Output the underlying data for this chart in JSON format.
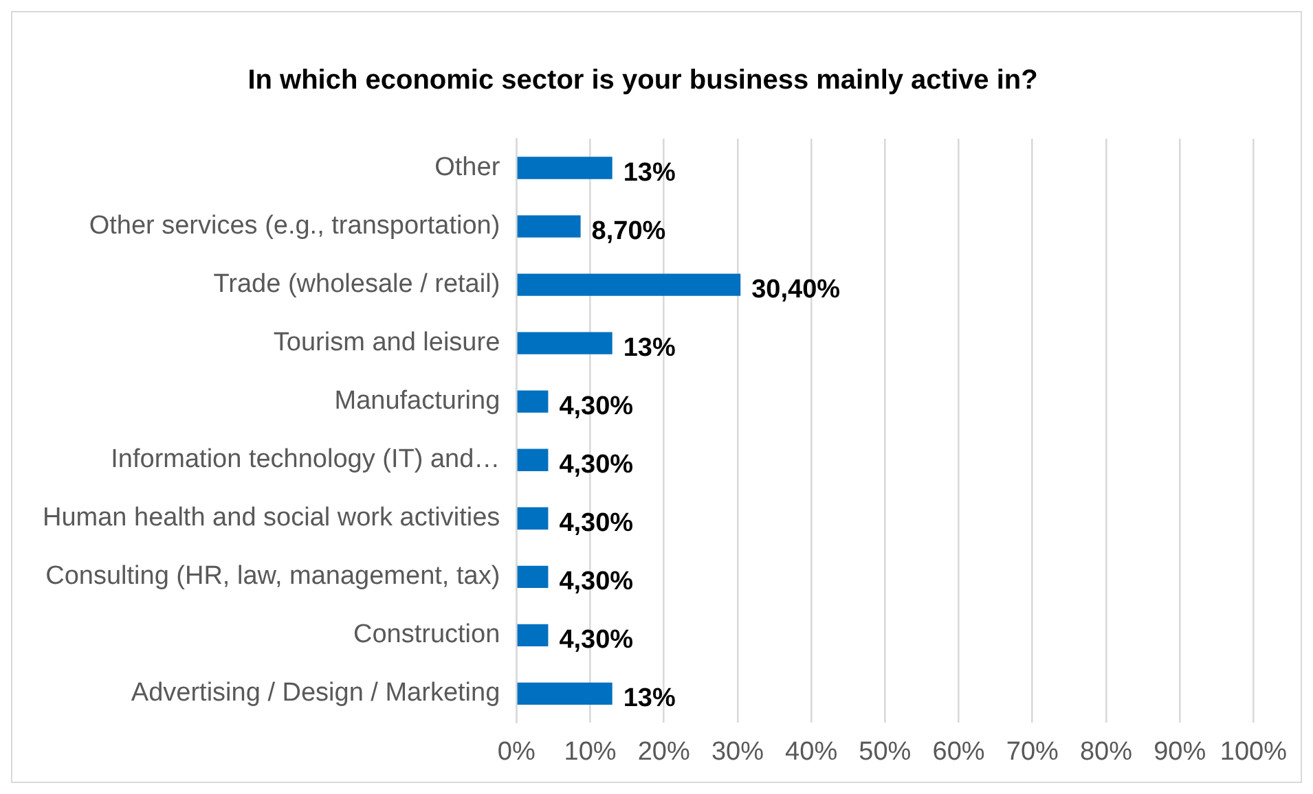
{
  "chart_data": {
    "type": "bar",
    "orientation": "horizontal",
    "title": "In which economic sector is your business mainly active in?",
    "categories": [
      "Other",
      "Other services (e.g., transportation)",
      "Trade (wholesale / retail)",
      "Tourism and leisure",
      "Manufacturing",
      "Information technology (IT) and…",
      "Human health and social work activities",
      "Consulting (HR, law, management, tax)",
      "Construction",
      "Advertising / Design / Marketing"
    ],
    "values": [
      13,
      8.7,
      30.4,
      13,
      4.3,
      4.3,
      4.3,
      4.3,
      4.3,
      13
    ],
    "value_labels": [
      "13%",
      "8,70%",
      "30,40%",
      "13%",
      "4,30%",
      "4,30%",
      "4,30%",
      "4,30%",
      "4,30%",
      "13%"
    ],
    "color": "#0070c0",
    "xlim": [
      0,
      100
    ],
    "xticks": [
      {
        "value": 0,
        "label": "0%"
      },
      {
        "value": 10,
        "label": "10%"
      },
      {
        "value": 20,
        "label": "20%"
      },
      {
        "value": 30,
        "label": "30%"
      },
      {
        "value": 40,
        "label": "40%"
      },
      {
        "value": 50,
        "label": "50%"
      },
      {
        "value": 60,
        "label": "60%"
      },
      {
        "value": 70,
        "label": "70%"
      },
      {
        "value": 80,
        "label": "80%"
      },
      {
        "value": 90,
        "label": "90%"
      },
      {
        "value": 100,
        "label": "100%"
      }
    ],
    "grid": "x",
    "legend": false
  }
}
